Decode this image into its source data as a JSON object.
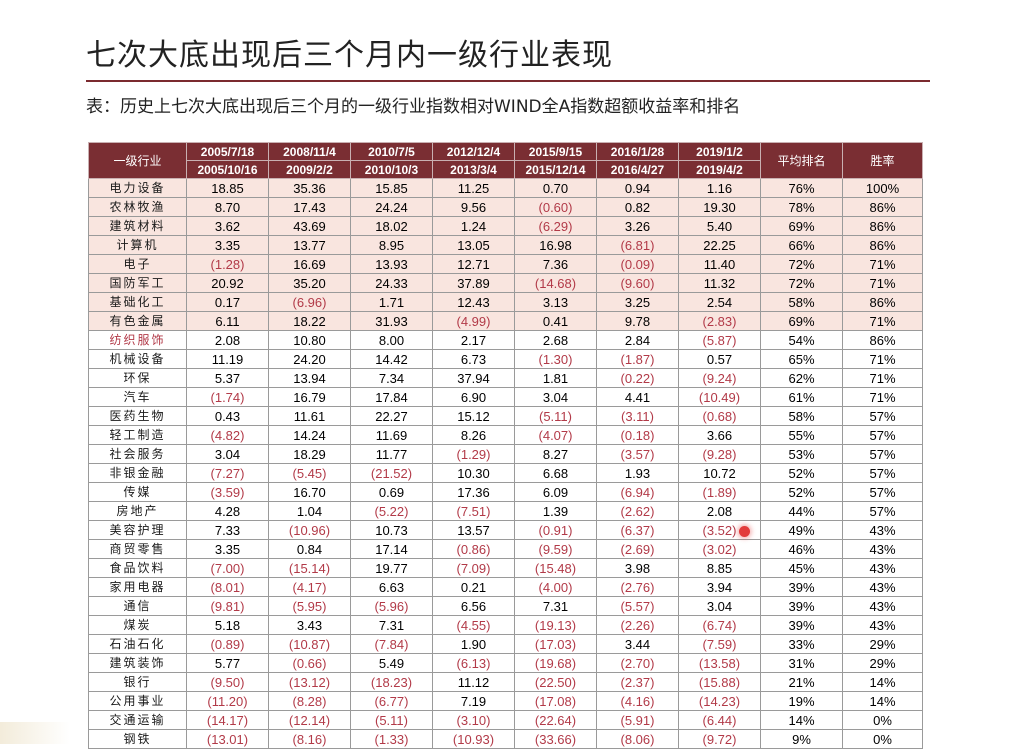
{
  "title": "七次大底出现后三个月内一级行业表现",
  "subtitle": "表：历史上七次大底出现后三个月的一级行业指数相对WIND全A指数超额收益率和排名",
  "header": {
    "industry": "一级行业",
    "periods": [
      {
        "start": "2005/7/18",
        "end": "2005/10/16"
      },
      {
        "start": "2008/11/4",
        "end": "2009/2/2"
      },
      {
        "start": "2010/7/5",
        "end": "2010/10/3"
      },
      {
        "start": "2012/12/4",
        "end": "2013/3/4"
      },
      {
        "start": "2015/9/15",
        "end": "2015/12/14"
      },
      {
        "start": "2016/1/28",
        "end": "2016/4/27"
      },
      {
        "start": "2019/1/2",
        "end": "2019/4/2"
      }
    ],
    "avg_rank": "平均排名",
    "win_rate": "胜率"
  },
  "rows": [
    {
      "name": "电力设备",
      "values": [
        "18.85",
        "35.36",
        "15.85",
        "11.25",
        "0.70",
        "0.94",
        "1.16"
      ],
      "avg_rank": "76%",
      "win_rate": "100%"
    },
    {
      "name": "农林牧渔",
      "values": [
        "8.70",
        "17.43",
        "24.24",
        "9.56",
        "(0.60)",
        "0.82",
        "19.30"
      ],
      "avg_rank": "78%",
      "win_rate": "86%"
    },
    {
      "name": "建筑材料",
      "values": [
        "3.62",
        "43.69",
        "18.02",
        "1.24",
        "(6.29)",
        "3.26",
        "5.40"
      ],
      "avg_rank": "69%",
      "win_rate": "86%"
    },
    {
      "name": "计算机",
      "values": [
        "3.35",
        "13.77",
        "8.95",
        "13.05",
        "16.98",
        "(6.81)",
        "22.25"
      ],
      "avg_rank": "66%",
      "win_rate": "86%"
    },
    {
      "name": "电子",
      "values": [
        "(1.28)",
        "16.69",
        "13.93",
        "12.71",
        "7.36",
        "(0.09)",
        "11.40"
      ],
      "avg_rank": "72%",
      "win_rate": "71%"
    },
    {
      "name": "国防军工",
      "values": [
        "20.92",
        "35.20",
        "24.33",
        "37.89",
        "(14.68)",
        "(9.60)",
        "11.32"
      ],
      "avg_rank": "72%",
      "win_rate": "71%"
    },
    {
      "name": "基础化工",
      "values": [
        "0.17",
        "(6.96)",
        "1.71",
        "12.43",
        "3.13",
        "3.25",
        "2.54"
      ],
      "avg_rank": "58%",
      "win_rate": "86%"
    },
    {
      "name": "有色金属",
      "values": [
        "6.11",
        "18.22",
        "31.93",
        "(4.99)",
        "0.41",
        "9.78",
        "(2.83)"
      ],
      "avg_rank": "69%",
      "win_rate": "71%"
    },
    {
      "name": "纺织服饰",
      "values": [
        "2.08",
        "10.80",
        "8.00",
        "2.17",
        "2.68",
        "2.84",
        "(5.87)"
      ],
      "avg_rank": "54%",
      "win_rate": "86%"
    },
    {
      "name": "机械设备",
      "values": [
        "11.19",
        "24.20",
        "14.42",
        "6.73",
        "(1.30)",
        "(1.87)",
        "0.57"
      ],
      "avg_rank": "65%",
      "win_rate": "71%"
    },
    {
      "name": "环保",
      "values": [
        "5.37",
        "13.94",
        "7.34",
        "37.94",
        "1.81",
        "(0.22)",
        "(9.24)"
      ],
      "avg_rank": "62%",
      "win_rate": "71%"
    },
    {
      "name": "汽车",
      "values": [
        "(1.74)",
        "16.79",
        "17.84",
        "6.90",
        "3.04",
        "4.41",
        "(10.49)"
      ],
      "avg_rank": "61%",
      "win_rate": "71%"
    },
    {
      "name": "医药生物",
      "values": [
        "0.43",
        "11.61",
        "22.27",
        "15.12",
        "(5.11)",
        "(3.11)",
        "(0.68)"
      ],
      "avg_rank": "58%",
      "win_rate": "57%"
    },
    {
      "name": "轻工制造",
      "values": [
        "(4.82)",
        "14.24",
        "11.69",
        "8.26",
        "(4.07)",
        "(0.18)",
        "3.66"
      ],
      "avg_rank": "55%",
      "win_rate": "57%"
    },
    {
      "name": "社会服务",
      "values": [
        "3.04",
        "18.29",
        "11.77",
        "(1.29)",
        "8.27",
        "(3.57)",
        "(9.28)"
      ],
      "avg_rank": "53%",
      "win_rate": "57%"
    },
    {
      "name": "非银金融",
      "values": [
        "(7.27)",
        "(5.45)",
        "(21.52)",
        "10.30",
        "6.68",
        "1.93",
        "10.72"
      ],
      "avg_rank": "52%",
      "win_rate": "57%"
    },
    {
      "name": "传媒",
      "values": [
        "(3.59)",
        "16.70",
        "0.69",
        "17.36",
        "6.09",
        "(6.94)",
        "(1.89)"
      ],
      "avg_rank": "52%",
      "win_rate": "57%"
    },
    {
      "name": "房地产",
      "values": [
        "4.28",
        "1.04",
        "(5.22)",
        "(7.51)",
        "1.39",
        "(2.62)",
        "2.08"
      ],
      "avg_rank": "44%",
      "win_rate": "57%"
    },
    {
      "name": "美容护理",
      "values": [
        "7.33",
        "(10.96)",
        "10.73",
        "13.57",
        "(0.91)",
        "(6.37)",
        "(3.52)"
      ],
      "avg_rank": "49%",
      "win_rate": "43%"
    },
    {
      "name": "商贸零售",
      "values": [
        "3.35",
        "0.84",
        "17.14",
        "(0.86)",
        "(9.59)",
        "(2.69)",
        "(3.02)"
      ],
      "avg_rank": "46%",
      "win_rate": "43%"
    },
    {
      "name": "食品饮料",
      "values": [
        "(7.00)",
        "(15.14)",
        "19.77",
        "(7.09)",
        "(15.48)",
        "3.98",
        "8.85"
      ],
      "avg_rank": "45%",
      "win_rate": "43%"
    },
    {
      "name": "家用电器",
      "values": [
        "(8.01)",
        "(4.17)",
        "6.63",
        "0.21",
        "(4.00)",
        "(2.76)",
        "3.94"
      ],
      "avg_rank": "39%",
      "win_rate": "43%"
    },
    {
      "name": "通信",
      "values": [
        "(9.81)",
        "(5.95)",
        "(5.96)",
        "6.56",
        "7.31",
        "(5.57)",
        "3.04"
      ],
      "avg_rank": "39%",
      "win_rate": "43%"
    },
    {
      "name": "煤炭",
      "values": [
        "5.18",
        "3.43",
        "7.31",
        "(4.55)",
        "(19.13)",
        "(2.26)",
        "(6.74)"
      ],
      "avg_rank": "39%",
      "win_rate": "43%"
    },
    {
      "name": "石油石化",
      "values": [
        "(0.89)",
        "(10.87)",
        "(7.84)",
        "1.90",
        "(17.03)",
        "3.44",
        "(7.59)"
      ],
      "avg_rank": "33%",
      "win_rate": "29%"
    },
    {
      "name": "建筑装饰",
      "values": [
        "5.77",
        "(0.66)",
        "5.49",
        "(6.13)",
        "(19.68)",
        "(2.70)",
        "(13.58)"
      ],
      "avg_rank": "31%",
      "win_rate": "29%"
    },
    {
      "name": "银行",
      "values": [
        "(9.50)",
        "(13.12)",
        "(18.23)",
        "11.12",
        "(22.50)",
        "(2.37)",
        "(15.88)"
      ],
      "avg_rank": "21%",
      "win_rate": "14%"
    },
    {
      "name": "公用事业",
      "values": [
        "(11.20)",
        "(8.28)",
        "(6.77)",
        "7.19",
        "(17.08)",
        "(4.16)",
        "(14.23)"
      ],
      "avg_rank": "19%",
      "win_rate": "14%"
    },
    {
      "name": "交通运输",
      "values": [
        "(14.17)",
        "(12.14)",
        "(5.11)",
        "(3.10)",
        "(22.64)",
        "(5.91)",
        "(6.44)"
      ],
      "avg_rank": "14%",
      "win_rate": "0%"
    },
    {
      "name": "钢铁",
      "values": [
        "(13.01)",
        "(8.16)",
        "(1.33)",
        "(10.93)",
        "(33.66)",
        "(8.06)",
        "(9.72)"
      ],
      "avg_rank": "9%",
      "win_rate": "0%"
    }
  ],
  "colors": {
    "header_bg": "#7a2e33",
    "highlight_row_bg": "#f9e5df",
    "negative_text": "#b23a48",
    "title_rule": "#7b2a2f",
    "marker_dot": "#e23b3b"
  }
}
